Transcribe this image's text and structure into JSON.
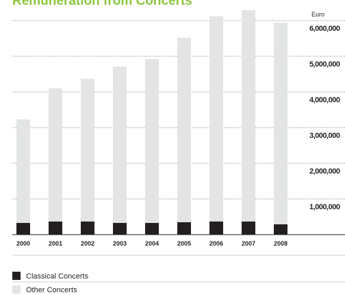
{
  "chart_data": {
    "type": "stacked_bar",
    "title": "Remuneration from Concerts",
    "unit_label": "Euro",
    "categories": [
      "2000",
      "2001",
      "2002",
      "2003",
      "2004",
      "2005",
      "2006",
      "2007",
      "2008"
    ],
    "series": [
      {
        "name": "Classical Concerts",
        "color": "#231f20",
        "values": [
          330000,
          370000,
          370000,
          330000,
          330000,
          350000,
          370000,
          370000,
          290000
        ]
      },
      {
        "name": "Other Concerts",
        "color": "#e3e4e4",
        "values": [
          2900000,
          3730000,
          4000000,
          4380000,
          4590000,
          5170000,
          5750000,
          5920000,
          5650000
        ]
      }
    ],
    "ylim": [
      0,
      6500000
    ],
    "yticks": [
      {
        "value": 1000000,
        "label": "1,000,000"
      },
      {
        "value": 2000000,
        "label": "2,000,000"
      },
      {
        "value": 3000000,
        "label": "3,000,000"
      },
      {
        "value": 4000000,
        "label": "4,000,000"
      },
      {
        "value": 5000000,
        "label": "5,000,000"
      },
      {
        "value": 6000000,
        "label": "6,000,000"
      }
    ],
    "grid": true
  }
}
